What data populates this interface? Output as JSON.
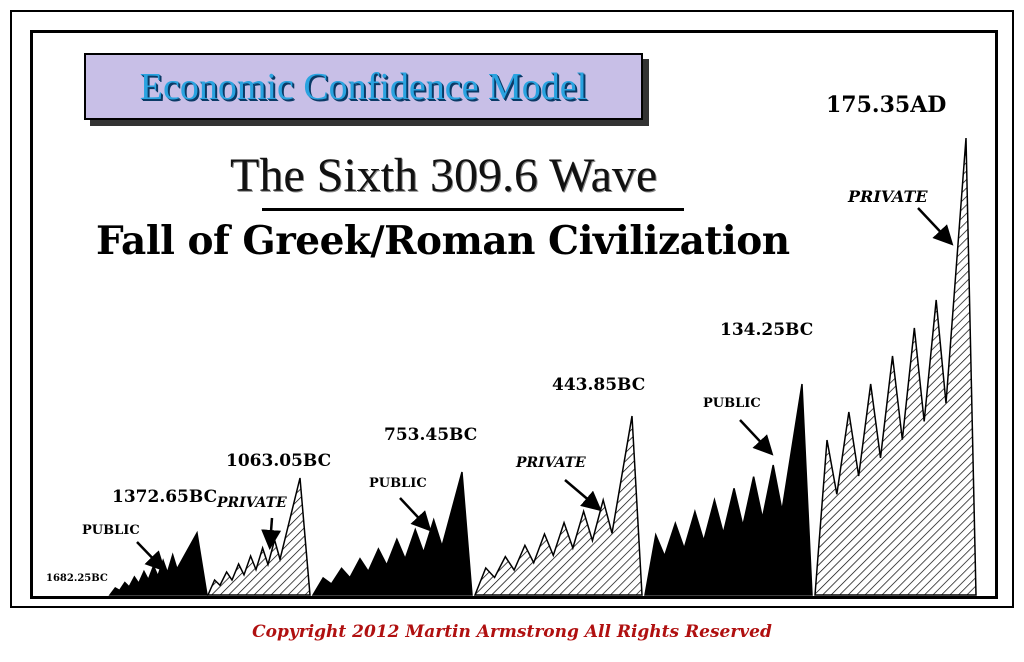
{
  "header": {
    "badge": "Economic Confidence Model",
    "title": "The Sixth 309.6 Wave",
    "subtitle": "Fall of Greek/Roman Civilization"
  },
  "peaks": {
    "start": "1682.25BC",
    "p1": "1372.65BC",
    "p2": "1063.05BC",
    "p3": "753.45BC",
    "p4": "443.85BC",
    "p5": "134.25BC",
    "p6": "175.35AD"
  },
  "phases": {
    "a": "PUBLIC",
    "b": "PRIVATE",
    "c": "PUBLIC",
    "d": "PRIVATE",
    "e": "PUBLIC",
    "f": "PRIVATE"
  },
  "footer": {
    "copyright": "Copyright 2012 Martin Armstrong All Rights Reserved"
  },
  "colors": {
    "badge_bg": "#c8bfe7",
    "badge_text": "#2aa3e0",
    "copyright": "#b01010"
  }
}
